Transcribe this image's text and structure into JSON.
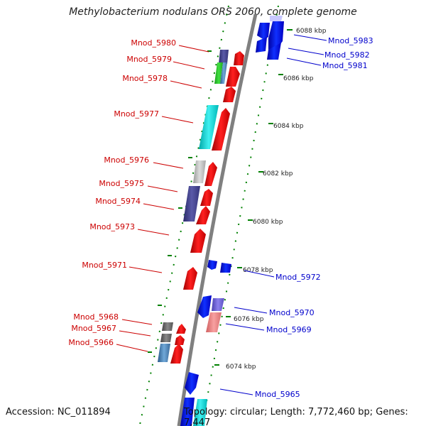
{
  "title": "Methylobacterium nodulans ORS 2060, complete genome",
  "footer": {
    "accession": "Accession: NC_011894",
    "stats": "Topology: circular; Length: 7,772,460 bp; Genes: 7,447"
  },
  "colors": {
    "forward": "#ff0000",
    "reverse": "#0000ff",
    "backbone": "#808080",
    "tick_dot": "#008000",
    "label_left": "#cc0000",
    "label_right": "#0000cc"
  },
  "scale_ticks": [
    {
      "pos_kbp": 6088,
      "label": "6088 kbp"
    },
    {
      "pos_kbp": 6086,
      "label": "6086 kbp"
    },
    {
      "pos_kbp": 6084,
      "label": "6084 kbp"
    },
    {
      "pos_kbp": 6082,
      "label": "6082 kbp"
    },
    {
      "pos_kbp": 6080,
      "label": "6080 kbp"
    },
    {
      "pos_kbp": 6078,
      "label": "6078 kbp"
    },
    {
      "pos_kbp": 6076,
      "label": "6076 kbp"
    },
    {
      "pos_kbp": 6074,
      "label": "6074 kbp"
    }
  ],
  "gene_labels_left": [
    {
      "name": "Mnod_5980",
      "color": "#cc0000"
    },
    {
      "name": "Mnod_5979",
      "color": "#cc0000"
    },
    {
      "name": "Mnod_5978",
      "color": "#cc0000"
    },
    {
      "name": "Mnod_5977",
      "color": "#cc0000"
    },
    {
      "name": "Mnod_5976",
      "color": "#cc0000"
    },
    {
      "name": "Mnod_5975",
      "color": "#cc0000"
    },
    {
      "name": "Mnod_5974",
      "color": "#cc0000"
    },
    {
      "name": "Mnod_5973",
      "color": "#cc0000"
    },
    {
      "name": "Mnod_5971",
      "color": "#cc0000"
    },
    {
      "name": "Mnod_5968",
      "color": "#cc0000"
    },
    {
      "name": "Mnod_5967",
      "color": "#cc0000"
    },
    {
      "name": "Mnod_5966",
      "color": "#cc0000"
    }
  ],
  "gene_labels_right": [
    {
      "name": "Mnod_5983",
      "color": "#0000cc"
    },
    {
      "name": "Mnod_5982",
      "color": "#0000cc"
    },
    {
      "name": "Mnod_5981",
      "color": "#0000cc"
    },
    {
      "name": "Mnod_5972",
      "color": "#0000cc"
    },
    {
      "name": "Mnod_5970",
      "color": "#0000cc"
    },
    {
      "name": "Mnod_5969",
      "color": "#0000cc"
    },
    {
      "name": "Mnod_5965",
      "color": "#0000cc"
    }
  ]
}
